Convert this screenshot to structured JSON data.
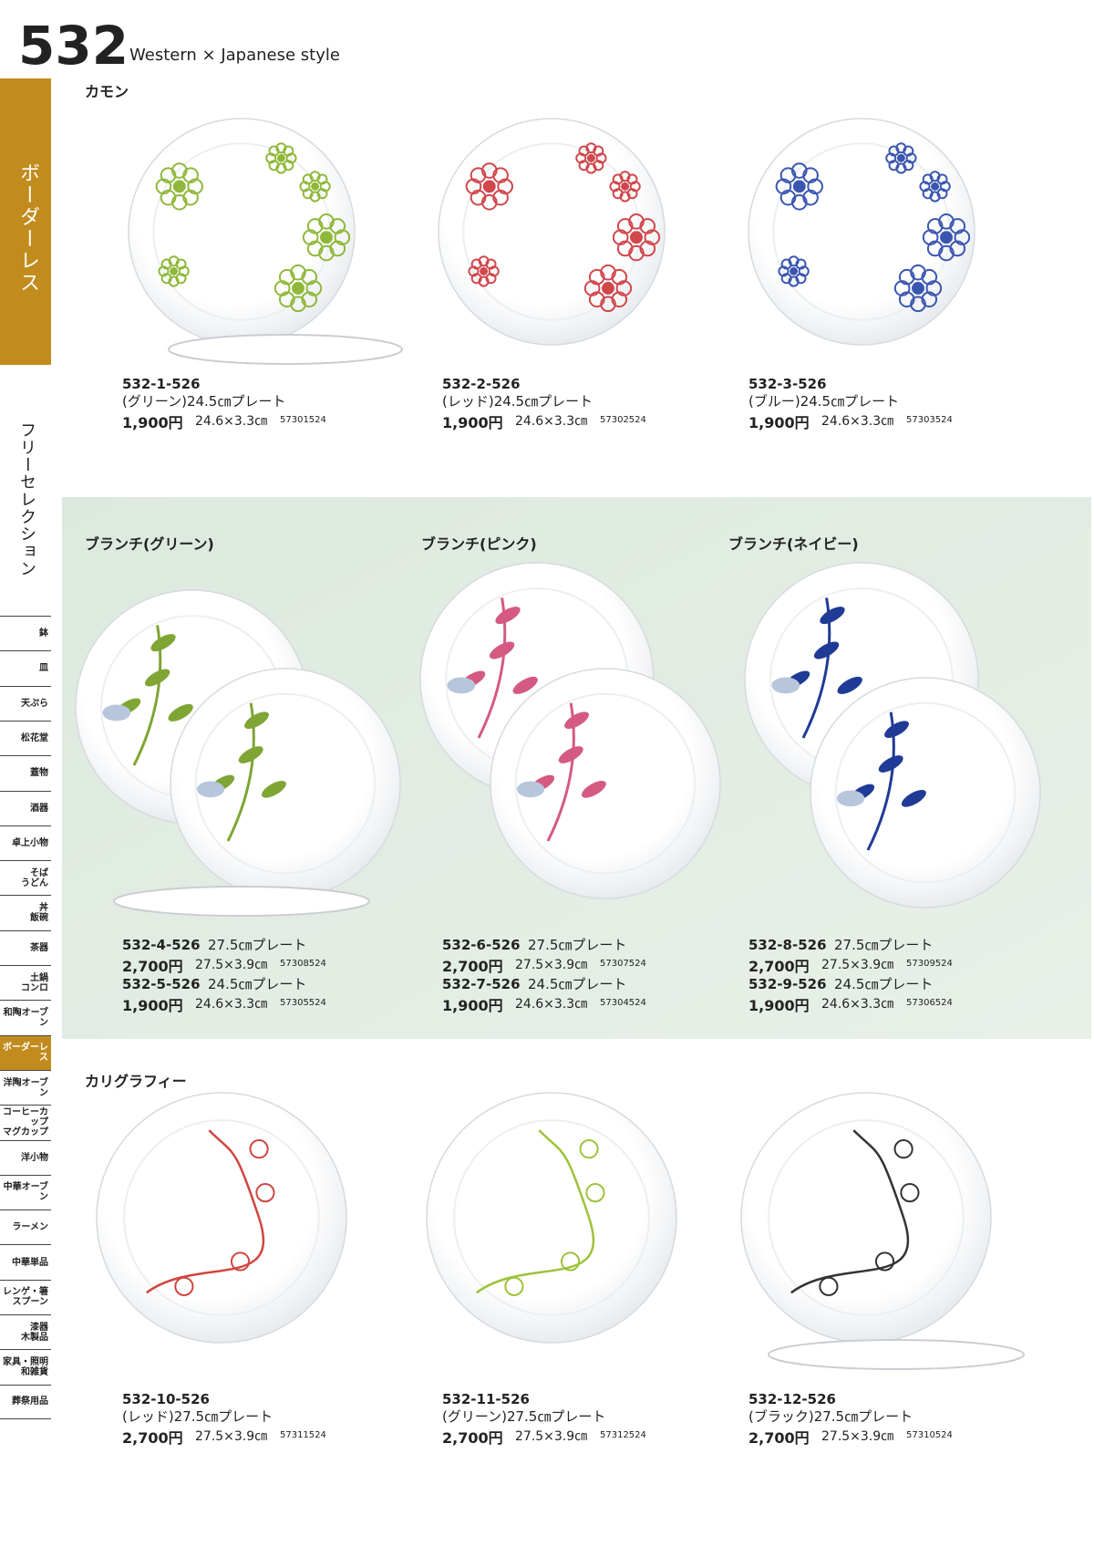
{
  "header": {
    "number": "532",
    "subtitle": "Western × Japanese style"
  },
  "sidebar": {
    "active_section": "ボーダーレス",
    "section": "フリーセレクション",
    "tabs": [
      "鉢",
      "皿",
      "天ぷら",
      "松花堂",
      "蓋物",
      "酒器",
      "卓上小物",
      "そば\nうどん",
      "丼\n飯碗",
      "茶器",
      "土鍋\nコンロ",
      "和陶オーブン",
      "ボーダーレス",
      "洋陶オーブン",
      "コーヒーカップ\nマグカップ",
      "洋小物",
      "中華オーブン",
      "ラーメン",
      "中華単品",
      "レンゲ・箸\nスプーン",
      "漆器\n木製品",
      "家具・照明\n和雑貨",
      "葬祭用品"
    ]
  },
  "sections": [
    {
      "title": "カモン",
      "items": [
        {
          "code": "532-1-526",
          "name": "(グリーン)24.5㎝プレート",
          "price": "1,900円",
          "size": "24.6×3.3㎝",
          "jan": "57301524"
        },
        {
          "code": "532-2-526",
          "name": "(レッド)24.5㎝プレート",
          "price": "1,900円",
          "size": "24.6×3.3㎝",
          "jan": "57302524"
        },
        {
          "code": "532-3-526",
          "name": "(ブルー)24.5㎝プレート",
          "price": "1,900円",
          "size": "24.6×3.3㎝",
          "jan": "57303524"
        }
      ]
    },
    {
      "columns": [
        {
          "title": "ブランチ(グリーン)",
          "items": [
            {
              "code": "532-4-526",
              "name": "27.5㎝プレート",
              "price": "2,700円",
              "size": "27.5×3.9㎝",
              "jan": "57308524"
            },
            {
              "code": "532-5-526",
              "name": "24.5㎝プレート",
              "price": "1,900円",
              "size": "24.6×3.3㎝",
              "jan": "57305524"
            }
          ]
        },
        {
          "title": "ブランチ(ピンク)",
          "items": [
            {
              "code": "532-6-526",
              "name": "27.5㎝プレート",
              "price": "2,700円",
              "size": "27.5×3.9㎝",
              "jan": "57307524"
            },
            {
              "code": "532-7-526",
              "name": "24.5㎝プレート",
              "price": "1,900円",
              "size": "24.6×3.3㎝",
              "jan": "57304524"
            }
          ]
        },
        {
          "title": "ブランチ(ネイビー)",
          "items": [
            {
              "code": "532-8-526",
              "name": "27.5㎝プレート",
              "price": "2,700円",
              "size": "27.5×3.9㎝",
              "jan": "57309524"
            },
            {
              "code": "532-9-526",
              "name": "24.5㎝プレート",
              "price": "1,900円",
              "size": "24.6×3.3㎝",
              "jan": "57306524"
            }
          ]
        }
      ]
    },
    {
      "title": "カリグラフィー",
      "items": [
        {
          "code": "532-10-526",
          "name": "(レッド)27.5㎝プレート",
          "price": "2,700円",
          "size": "27.5×3.9㎝",
          "jan": "57311524"
        },
        {
          "code": "532-11-526",
          "name": "(グリーン)27.5㎝プレート",
          "price": "2,700円",
          "size": "27.5×3.9㎝",
          "jan": "57312524"
        },
        {
          "code": "532-12-526",
          "name": "(ブラック)27.5㎝プレート",
          "price": "2,700円",
          "size": "27.5×3.9㎝",
          "jan": "57310524"
        }
      ]
    }
  ]
}
